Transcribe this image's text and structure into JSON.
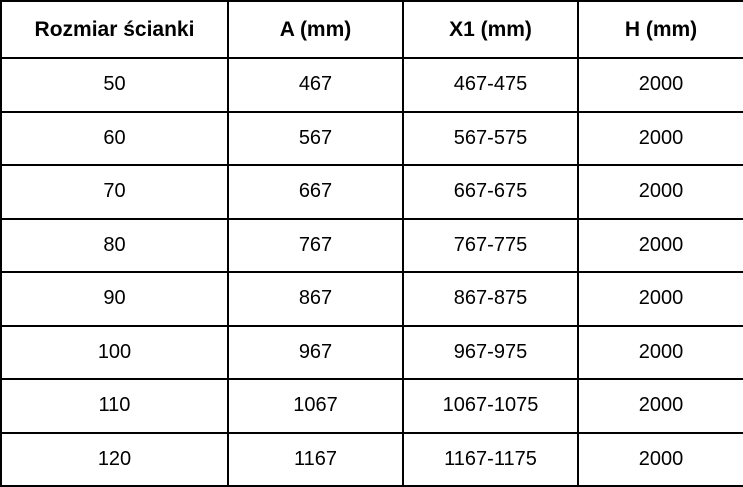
{
  "chart_data": {
    "type": "table",
    "title": "",
    "headers": [
      "Rozmiar ścianki",
      "A (mm)",
      "X1 (mm)",
      "H (mm)"
    ],
    "rows": [
      [
        "50",
        "467",
        "467-475",
        "2000"
      ],
      [
        "60",
        "567",
        "567-575",
        "2000"
      ],
      [
        "70",
        "667",
        "667-675",
        "2000"
      ],
      [
        "80",
        "767",
        "767-775",
        "2000"
      ],
      [
        "90",
        "867",
        "867-875",
        "2000"
      ],
      [
        "100",
        "967",
        "967-975",
        "2000"
      ],
      [
        "110",
        "1067",
        "1067-1075",
        "2000"
      ],
      [
        "120",
        "1167",
        "1167-1175",
        "2000"
      ]
    ]
  },
  "colors": {
    "border": "#000000",
    "text": "#000000",
    "background": "#ffffff"
  }
}
